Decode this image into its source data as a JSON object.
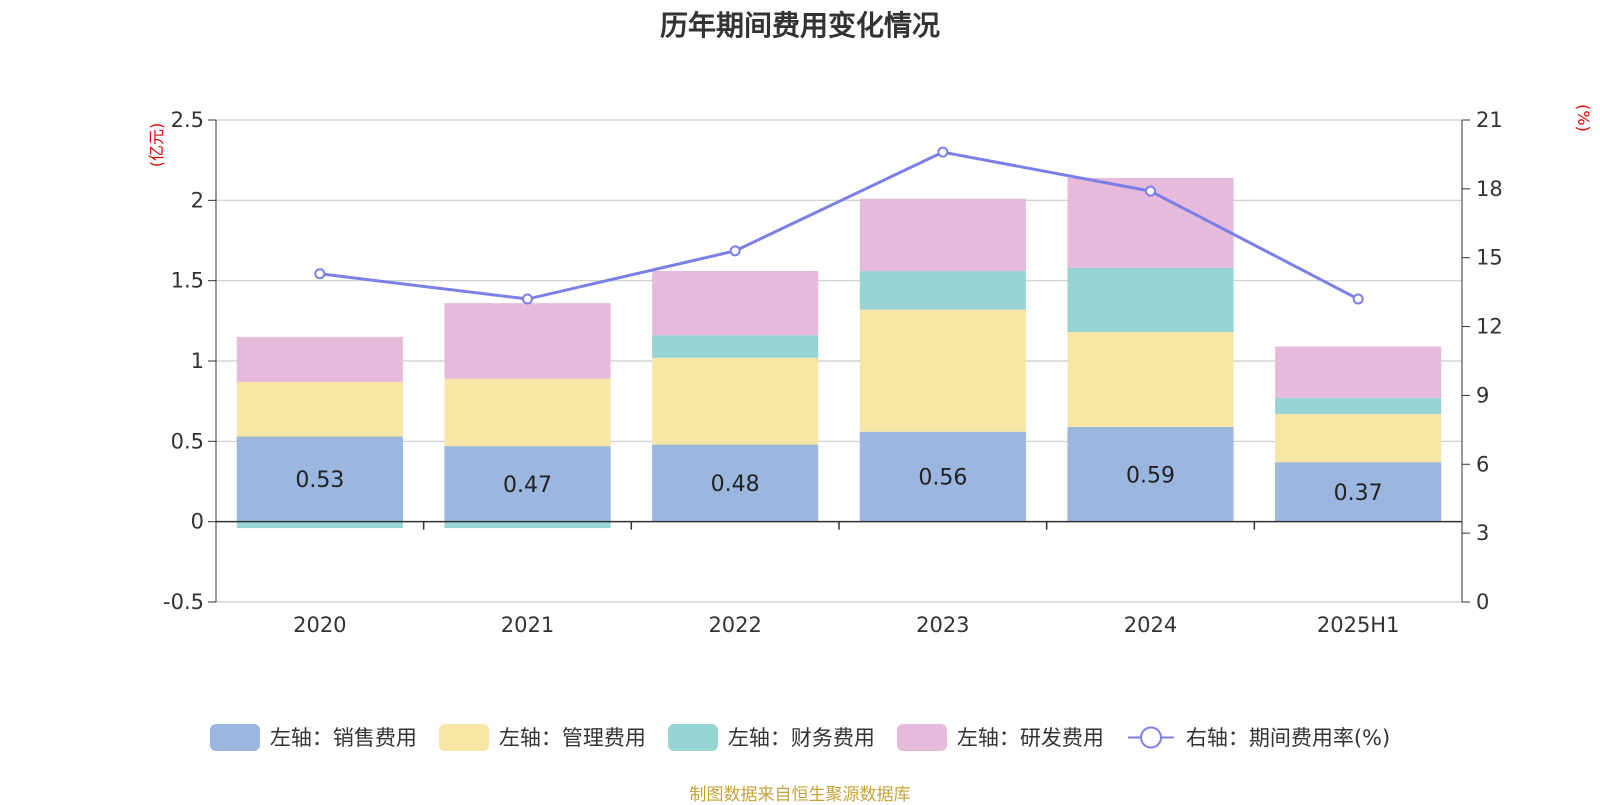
{
  "chart_data": {
    "type": "bar",
    "title": "历年期间费用变化情况",
    "categories": [
      "2020",
      "2021",
      "2022",
      "2023",
      "2024",
      "2025H1"
    ],
    "left_axis": {
      "unit_label": "(亿元)",
      "ylim": [
        -0.5,
        2.5
      ],
      "ticks": [
        "2.5",
        "2",
        "1.5",
        "1",
        "0.5",
        "0",
        "-0.5"
      ]
    },
    "right_axis": {
      "unit_label": "(%)",
      "ylim": [
        0,
        21
      ],
      "ticks": [
        "21",
        "18",
        "15",
        "12",
        "9",
        "6",
        "3",
        "0"
      ]
    },
    "series": [
      {
        "name": "左轴：销售费用",
        "axis": "left",
        "stack": true,
        "color": "#9bb7e0",
        "values": [
          0.53,
          0.47,
          0.48,
          0.56,
          0.59,
          0.37
        ],
        "labels": [
          "0.53",
          "0.47",
          "0.48",
          "0.56",
          "0.59",
          "0.37"
        ]
      },
      {
        "name": "左轴：管理费用",
        "axis": "left",
        "stack": true,
        "color": "#f7e6a6",
        "values": [
          0.34,
          0.42,
          0.54,
          0.76,
          0.59,
          0.3
        ]
      },
      {
        "name": "左轴：财务费用",
        "axis": "left",
        "stack": true,
        "color": "#97d4d4",
        "values": [
          -0.04,
          -0.04,
          0.14,
          0.24,
          0.4,
          0.1
        ]
      },
      {
        "name": "左轴：研发费用",
        "axis": "left",
        "stack": true,
        "color": "#e7b9da",
        "values": [
          0.28,
          0.47,
          0.4,
          0.45,
          0.56,
          0.32
        ]
      },
      {
        "name": "右轴：期间费用率(%)",
        "axis": "right",
        "type": "line",
        "color": "#7b7fe8",
        "values": [
          14.3,
          13.2,
          15.3,
          19.6,
          17.9,
          13.2
        ]
      }
    ],
    "grid": true,
    "legend_position": "bottom"
  },
  "footer": {
    "source": "制图数据来自恒生聚源数据库"
  }
}
